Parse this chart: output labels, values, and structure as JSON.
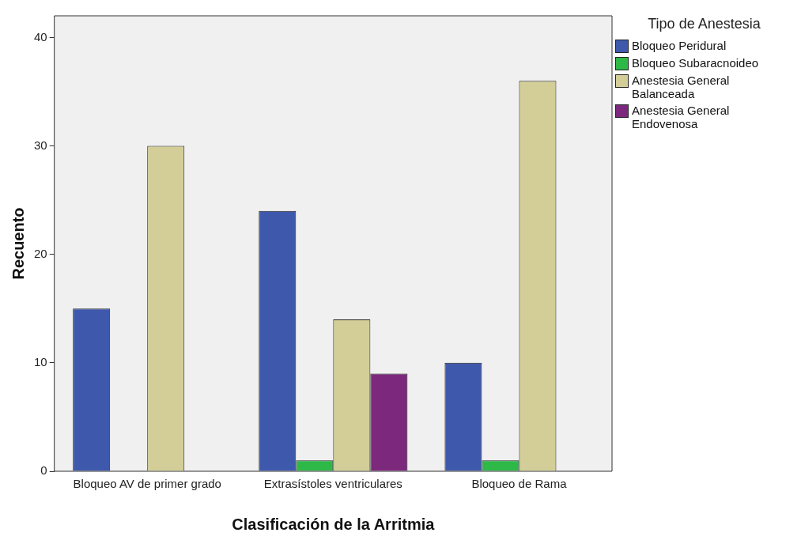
{
  "chart_data": {
    "type": "bar",
    "xlabel": "Clasificación de la Arritmia",
    "ylabel": "Recuento",
    "legend_title": "Tipo de Anestesia",
    "legend": "right",
    "grid": false,
    "categories": [
      "Bloqueo AV de primer grado",
      "Extrasístoles ventriculares",
      "Bloqueo de Rama"
    ],
    "ylim": [
      0,
      42
    ],
    "yticks": [
      0,
      10,
      20,
      30,
      40
    ],
    "series": [
      {
        "name": "Bloqueo Peridural",
        "color": "#3e58ac",
        "values": [
          15,
          24,
          10
        ]
      },
      {
        "name": "Bloqueo Subaracnoideo",
        "color": "#2eb848",
        "values": [
          null,
          1,
          1
        ]
      },
      {
        "name": "Anestesia General Balanceada",
        "color": "#d3ce97",
        "values": [
          30,
          14,
          36
        ]
      },
      {
        "name": "Anestesia General Endovenosa",
        "color": "#7c287d",
        "values": [
          null,
          9,
          null
        ]
      }
    ]
  }
}
